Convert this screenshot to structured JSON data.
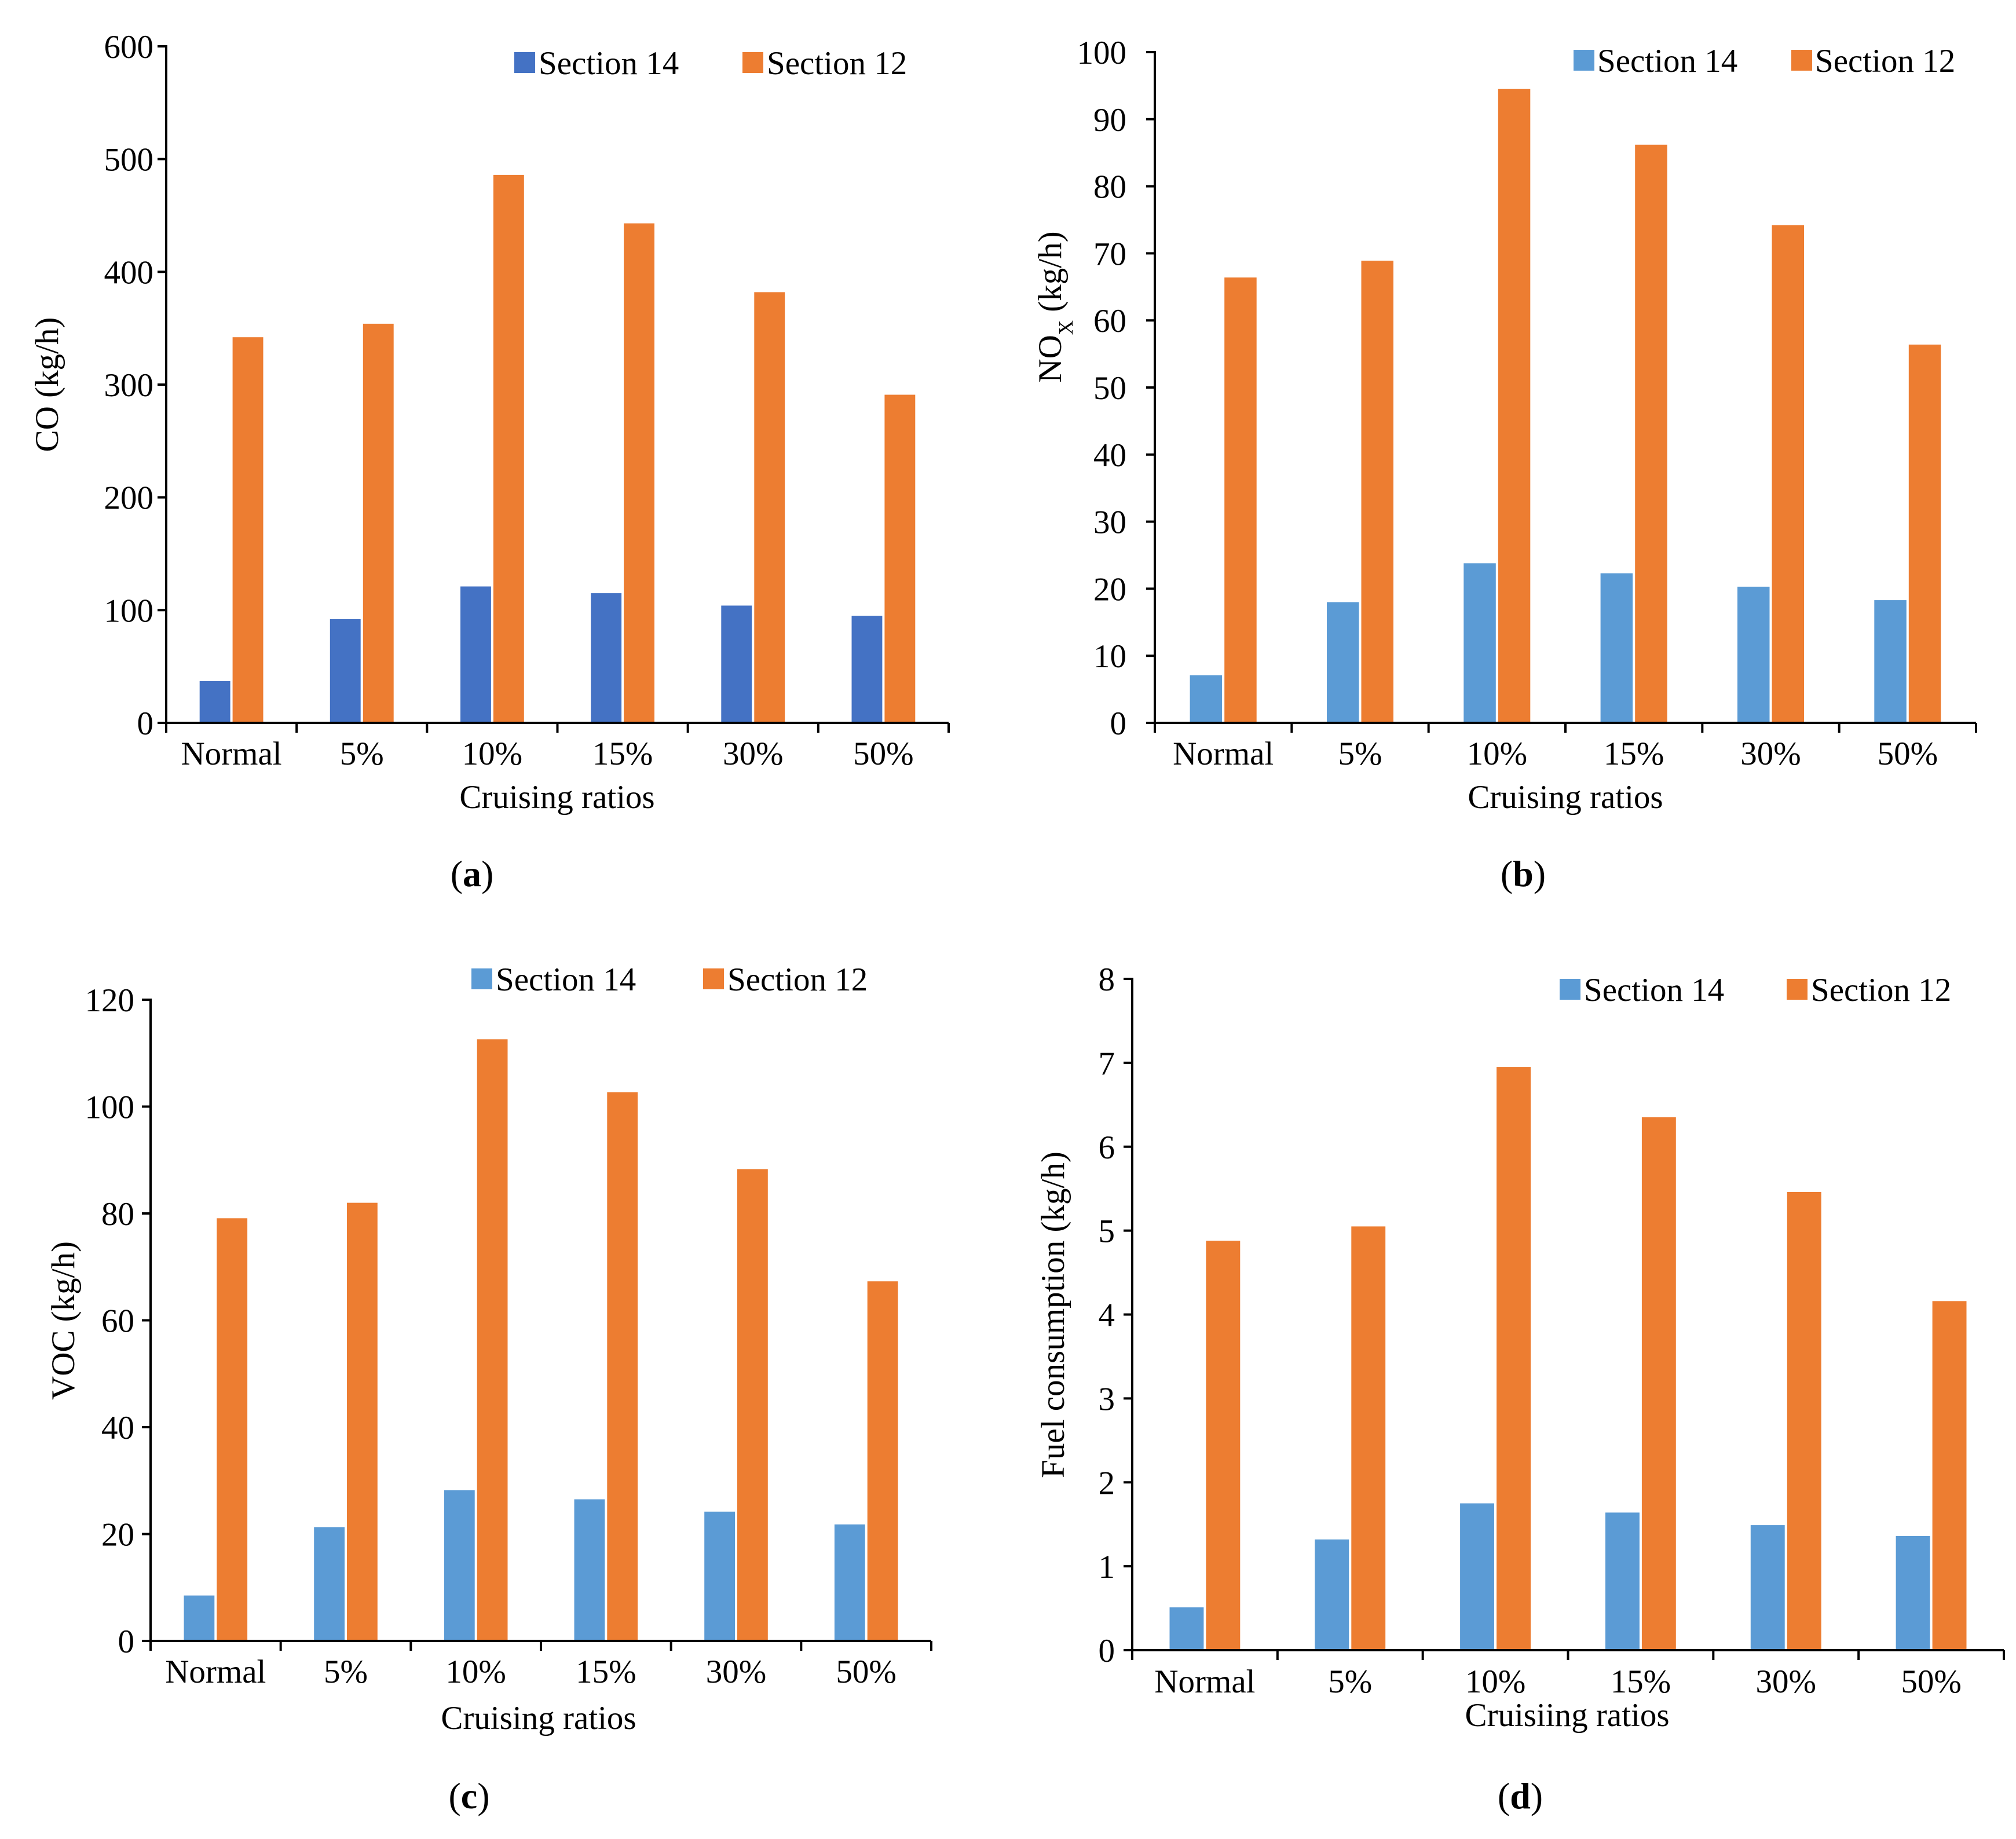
{
  "colors": {
    "section14_a": "#4472C4",
    "section14_other": "#5B9BD5",
    "section12": "#ED7D31",
    "axis": "#000000"
  },
  "chart_data": [
    {
      "panel_label": "a",
      "type": "bar",
      "categories": [
        "Normal",
        "5%",
        "10%",
        "15%",
        "30%",
        "50%"
      ],
      "series": [
        {
          "name": "Section 14",
          "values": [
            37,
            92,
            121,
            115,
            104,
            95
          ],
          "color_key": "section14_a"
        },
        {
          "name": "Section 12",
          "values": [
            342,
            354,
            486,
            443,
            382,
            291
          ],
          "color_key": "section12"
        }
      ],
      "xlabel": "Cruising ratios",
      "ylabel": "CO (kg/h)",
      "ylabel_sub": "",
      "ylabel_suffix": "",
      "ylim": [
        0,
        600
      ],
      "yticks": [
        0,
        100,
        200,
        300,
        400,
        500,
        600
      ],
      "legend": "top-right"
    },
    {
      "panel_label": "b",
      "type": "bar",
      "categories": [
        "Normal",
        "5%",
        "10%",
        "15%",
        "30%",
        "50%"
      ],
      "series": [
        {
          "name": "Section 14",
          "values": [
            7.1,
            18,
            23.8,
            22.3,
            20.3,
            18.3
          ],
          "color_key": "section14_other"
        },
        {
          "name": "Section 12",
          "values": [
            66.4,
            68.9,
            94.5,
            86.2,
            74.2,
            56.4
          ],
          "color_key": "section12"
        }
      ],
      "xlabel": "Cruising ratios",
      "ylabel": "NO",
      "ylabel_sub": "X",
      "ylabel_suffix": " (kg/h)",
      "ylim": [
        0,
        100
      ],
      "yticks": [
        0,
        10,
        20,
        30,
        40,
        50,
        60,
        70,
        80,
        90,
        100
      ],
      "legend": "top-right"
    },
    {
      "panel_label": "c",
      "type": "bar",
      "categories": [
        "Normal",
        "5%",
        "10%",
        "15%",
        "30%",
        "50%"
      ],
      "series": [
        {
          "name": "Section 14",
          "values": [
            8.5,
            21.3,
            28.2,
            26.5,
            24.2,
            21.8
          ],
          "color_key": "section14_other"
        },
        {
          "name": "Section 12",
          "values": [
            79.1,
            82,
            112.6,
            102.7,
            88.3,
            67.3
          ],
          "color_key": "section12"
        }
      ],
      "xlabel": "Cruising ratios",
      "ylabel": "VOC (kg/h)",
      "ylabel_sub": "",
      "ylabel_suffix": "",
      "ylim": [
        0,
        120
      ],
      "yticks": [
        0,
        20,
        40,
        60,
        80,
        100,
        120
      ],
      "legend": "top-right"
    },
    {
      "panel_label": "d",
      "type": "bar",
      "categories": [
        "Normal",
        "5%",
        "10%",
        "15%",
        "30%",
        "50%"
      ],
      "series": [
        {
          "name": "Section 14",
          "values": [
            0.51,
            1.32,
            1.75,
            1.64,
            1.49,
            1.36
          ],
          "color_key": "section14_other"
        },
        {
          "name": "Section 12",
          "values": [
            4.88,
            5.05,
            6.95,
            6.35,
            5.46,
            4.16
          ],
          "color_key": "section12"
        }
      ],
      "xlabel": "Cruisiing ratios",
      "ylabel": "Fuel consumption (kg/h)",
      "ylabel_sub": "",
      "ylabel_suffix": "",
      "ylim": [
        0,
        8
      ],
      "yticks": [
        0,
        1,
        2,
        3,
        4,
        5,
        6,
        7,
        8
      ],
      "legend": "top-right"
    }
  ]
}
